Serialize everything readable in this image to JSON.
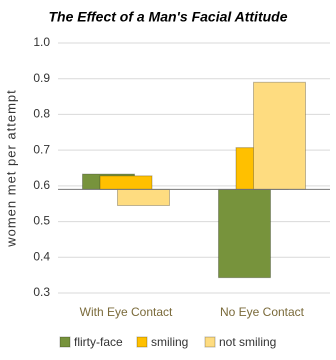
{
  "chart_data": {
    "type": "bar",
    "title": "The Effect of a Man's Facial Attitude",
    "y_label": "women met per attempt",
    "categories": [
      "With Eye Contact",
      "No Eye Contact"
    ],
    "series": [
      {
        "name": "flirty-face",
        "color": "#77933c",
        "values": [
          0.633,
          0.343
        ]
      },
      {
        "name": "smiling",
        "color": "#ffc000",
        "values": [
          0.628,
          0.707
        ]
      },
      {
        "name": "not smiling",
        "color": "#fedc80",
        "values": [
          0.545,
          0.89
        ]
      }
    ],
    "bar_base": 0.59,
    "ylim": [
      0.3,
      1.0
    ],
    "yticks": [
      0.3,
      0.4,
      0.5,
      0.6,
      0.7,
      0.8,
      0.9,
      {
        "value": 1.0,
        "label": "1.0"
      }
    ],
    "grid": true,
    "legend": "bottom"
  }
}
